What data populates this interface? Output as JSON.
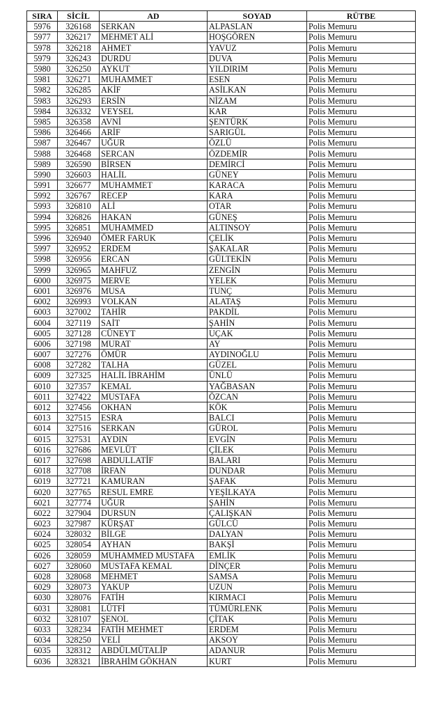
{
  "headers": [
    "SIRA",
    "SİCİL",
    "AD",
    "SOYAD",
    "RÜTBE"
  ],
  "rows": [
    [
      "5976",
      "326168",
      "SERKAN",
      "ALPASLAN",
      "Polis Memuru"
    ],
    [
      "5977",
      "326217",
      "MEHMET ALİ",
      "HOŞGÖREN",
      "Polis Memuru"
    ],
    [
      "5978",
      "326218",
      "AHMET",
      "YAVUZ",
      "Polis Memuru"
    ],
    [
      "5979",
      "326243",
      "DURDU",
      "DUVA",
      "Polis Memuru"
    ],
    [
      "5980",
      "326250",
      "AYKUT",
      "YILDIRIM",
      "Polis Memuru"
    ],
    [
      "5981",
      "326271",
      "MUHAMMET",
      "ESEN",
      "Polis Memuru"
    ],
    [
      "5982",
      "326285",
      "AKİF",
      "ASİLKAN",
      "Polis Memuru"
    ],
    [
      "5983",
      "326293",
      "ERSİN",
      "NİZAM",
      "Polis Memuru"
    ],
    [
      "5984",
      "326332",
      "VEYSEL",
      "KAR",
      "Polis Memuru"
    ],
    [
      "5985",
      "326358",
      "AVNİ",
      "ŞENTÜRK",
      "Polis Memuru"
    ],
    [
      "5986",
      "326466",
      "ARİF",
      "SARIGÜL",
      "Polis Memuru"
    ],
    [
      "5987",
      "326467",
      "UĞUR",
      "ÖZLÜ",
      "Polis Memuru"
    ],
    [
      "5988",
      "326468",
      "SERCAN",
      "ÖZDEMİR",
      "Polis Memuru"
    ],
    [
      "5989",
      "326590",
      "BİRSEN",
      "DEMİRCİ",
      "Polis Memuru"
    ],
    [
      "5990",
      "326603",
      "HALİL",
      "GÜNEY",
      "Polis Memuru"
    ],
    [
      "5991",
      "326677",
      "MUHAMMET",
      "KARACA",
      "Polis Memuru"
    ],
    [
      "5992",
      "326767",
      "RECEP",
      "KARA",
      "Polis Memuru"
    ],
    [
      "5993",
      "326810",
      "ALİ",
      "OTAR",
      "Polis Memuru"
    ],
    [
      "5994",
      "326826",
      "HAKAN",
      "GÜNEŞ",
      "Polis Memuru"
    ],
    [
      "5995",
      "326851",
      "MUHAMMED",
      "ALTINSOY",
      "Polis Memuru"
    ],
    [
      "5996",
      "326940",
      "ÖMER FARUK",
      "ÇELİK",
      "Polis Memuru"
    ],
    [
      "5997",
      "326952",
      "ERDEM",
      "ŞAKALAR",
      "Polis Memuru"
    ],
    [
      "5998",
      "326956",
      "ERCAN",
      "GÜLTEKİN",
      "Polis Memuru"
    ],
    [
      "5999",
      "326965",
      "MAHFUZ",
      "ZENGİN",
      "Polis Memuru"
    ],
    [
      "6000",
      "326975",
      "MERVE",
      "YELEK",
      "Polis Memuru"
    ],
    [
      "6001",
      "326976",
      "MUSA",
      "TUNÇ",
      "Polis Memuru"
    ],
    [
      "6002",
      "326993",
      "VOLKAN",
      "ALATAŞ",
      "Polis Memuru"
    ],
    [
      "6003",
      "327002",
      "TAHİR",
      "PAKDİL",
      "Polis Memuru"
    ],
    [
      "6004",
      "327119",
      "SAİT",
      "ŞAHİN",
      "Polis Memuru"
    ],
    [
      "6005",
      "327128",
      "CÜNEYT",
      "UÇAK",
      "Polis Memuru"
    ],
    [
      "6006",
      "327198",
      "MURAT",
      "AY",
      "Polis Memuru"
    ],
    [
      "6007",
      "327276",
      "ÖMÜR",
      "AYDINOĞLU",
      "Polis Memuru"
    ],
    [
      "6008",
      "327282",
      "TALHA",
      "GÜZEL",
      "Polis Memuru"
    ],
    [
      "6009",
      "327325",
      "HALİL İBRAHİM",
      "ÜNLÜ",
      "Polis Memuru"
    ],
    [
      "6010",
      "327357",
      "KEMAL",
      "YAĞBASAN",
      "Polis Memuru"
    ],
    [
      "6011",
      "327422",
      "MUSTAFA",
      "ÖZCAN",
      "Polis Memuru"
    ],
    [
      "6012",
      "327456",
      "OKHAN",
      "KÖK",
      "Polis Memuru"
    ],
    [
      "6013",
      "327515",
      "ESRA",
      "BALCI",
      "Polis Memuru"
    ],
    [
      "6014",
      "327516",
      "SERKAN",
      "GÜROL",
      "Polis Memuru"
    ],
    [
      "6015",
      "327531",
      "AYDIN",
      "EVGİN",
      "Polis Memuru"
    ],
    [
      "6016",
      "327686",
      "MEVLÜT",
      "ÇİLEK",
      "Polis Memuru"
    ],
    [
      "6017",
      "327698",
      "ABDULLATİF",
      "BALARI",
      "Polis Memuru"
    ],
    [
      "6018",
      "327708",
      "İRFAN",
      "DUNDAR",
      "Polis Memuru"
    ],
    [
      "6019",
      "327721",
      "KAMURAN",
      "ŞAFAK",
      "Polis Memuru"
    ],
    [
      "6020",
      "327765",
      "RESUL EMRE",
      "YEŞİLKAYA",
      "Polis Memuru"
    ],
    [
      "6021",
      "327774",
      "UĞUR",
      "ŞAHİN",
      "Polis Memuru"
    ],
    [
      "6022",
      "327904",
      "DURSUN",
      "ÇALIŞKAN",
      "Polis Memuru"
    ],
    [
      "6023",
      "327987",
      "KÜRŞAT",
      "GÜLCÜ",
      "Polis Memuru"
    ],
    [
      "6024",
      "328032",
      "BİLGE",
      "DALYAN",
      "Polis Memuru"
    ],
    [
      "6025",
      "328054",
      "AYHAN",
      "BAKŞİ",
      "Polis Memuru"
    ],
    [
      "6026",
      "328059",
      "MUHAMMED MUSTAFA",
      "EMLİK",
      "Polis Memuru"
    ],
    [
      "6027",
      "328060",
      "MUSTAFA KEMAL",
      "DİNÇER",
      "Polis Memuru"
    ],
    [
      "6028",
      "328068",
      "MEHMET",
      "SAMSA",
      "Polis Memuru"
    ],
    [
      "6029",
      "328073",
      "YAKUP",
      "UZUN",
      "Polis Memuru"
    ],
    [
      "6030",
      "328076",
      "FATİH",
      "KIRMACI",
      "Polis Memuru"
    ],
    [
      "6031",
      "328081",
      "LÜTFİ",
      "TÜMÜRLENK",
      "Polis Memuru"
    ],
    [
      "6032",
      "328107",
      "ŞENOL",
      "ÇİTAK",
      "Polis Memuru"
    ],
    [
      "6033",
      "328234",
      "FATİH MEHMET",
      "ERDEM",
      "Polis Memuru"
    ],
    [
      "6034",
      "328250",
      "VELİ",
      "AKSOY",
      "Polis Memuru"
    ],
    [
      "6035",
      "328312",
      "ABDÜLMÜTALİP",
      "ADANUR",
      "Polis Memuru"
    ],
    [
      "6036",
      "328321",
      "İBRAHİM GÖKHAN",
      "KURT",
      "Polis Memuru"
    ]
  ]
}
